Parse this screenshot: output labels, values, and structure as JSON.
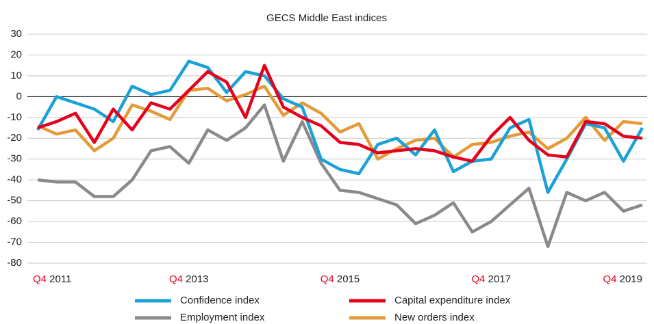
{
  "chart_data": {
    "type": "line",
    "subtitle": "GECS Middle East indices",
    "categories": [
      "Q4 2011",
      null,
      null,
      null,
      null,
      null,
      null,
      null,
      "Q4 2013",
      null,
      null,
      null,
      null,
      null,
      null,
      null,
      "Q4 2015",
      null,
      null,
      null,
      null,
      null,
      null,
      null,
      "Q4 2017",
      null,
      null,
      null,
      null,
      null,
      null,
      null,
      "Q4 2019"
    ],
    "series": [
      {
        "name": "Confidence index",
        "color": "#1ba1d6",
        "values": [
          -16,
          0,
          -3,
          -6,
          -12,
          5,
          1,
          3,
          17,
          14,
          2,
          12,
          10,
          -1,
          -5,
          -30,
          -35,
          -37,
          -23,
          -20,
          -28,
          -16,
          -36,
          -31,
          -30,
          -15,
          -11,
          -46,
          -30,
          -13,
          -15,
          -31,
          -15
        ]
      },
      {
        "name": "Capital expenditure index",
        "color": "#e5001c",
        "values": [
          -15,
          -12,
          -8,
          -22,
          -6,
          -16,
          -3,
          -6,
          3,
          12,
          7,
          -10,
          15,
          -5,
          -10,
          -14,
          -22,
          -23,
          -27,
          -26,
          -25,
          -26,
          -29,
          -31,
          -19,
          -10,
          -21,
          -28,
          -29,
          -12,
          -13,
          -19,
          -20
        ]
      },
      {
        "name": "Employment index",
        "color": "#8a8a8a",
        "values": [
          -40,
          -41,
          -41,
          -48,
          -48,
          -40,
          -26,
          -24,
          -32,
          -16,
          -21,
          -15,
          -4,
          -31,
          -12,
          -32,
          -45,
          -46,
          -49,
          -52,
          -61,
          -57,
          -51,
          -65,
          -60,
          -52,
          -44,
          -72,
          -46,
          -50,
          -46,
          -55,
          -52
        ]
      },
      {
        "name": "New orders index",
        "color": "#e39b3a",
        "values": [
          -14,
          -18,
          -16,
          -26,
          -20,
          -4,
          -7,
          -11,
          3,
          4,
          -2,
          1,
          5,
          -9,
          -3,
          -8,
          -17,
          -13,
          -30,
          -25,
          -21,
          -20,
          -29,
          -23,
          -22,
          -19,
          -17,
          -25,
          -20,
          -10,
          -21,
          -12,
          -13
        ]
      }
    ],
    "ylim": [
      -80,
      30
    ],
    "yticks": [
      -80,
      -70,
      -60,
      -50,
      -40,
      -30,
      -20,
      -10,
      0,
      10,
      20,
      30
    ],
    "grid": true,
    "legend": "bottom"
  }
}
